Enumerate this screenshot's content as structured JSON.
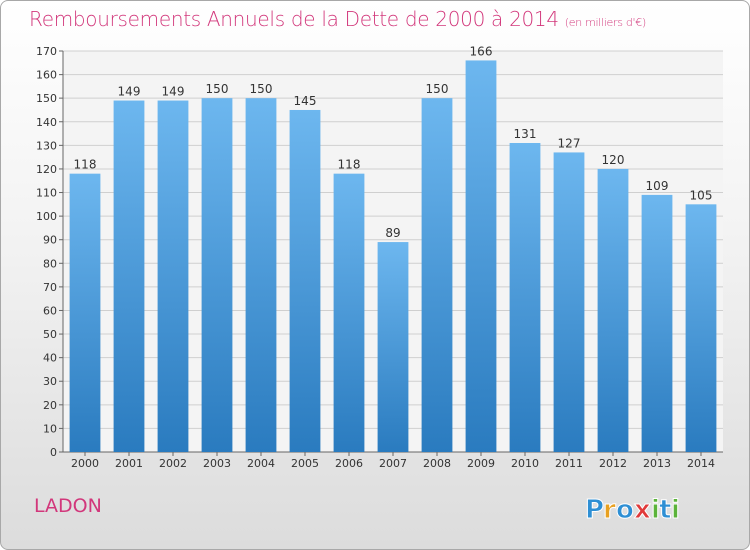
{
  "title": "Remboursements Annuels de la Dette de 2000 à 2014",
  "unit_note": "(en milliers d'€)",
  "commune": "LADON",
  "logo": {
    "text": "Proxiti",
    "letters": [
      "P",
      "r",
      "o",
      "x",
      "i",
      "t",
      "i"
    ],
    "colors": [
      "#2e8fd4",
      "#e8a020",
      "#2e8fd4",
      "#e03a3a",
      "#5bb33a",
      "#2e8fd4",
      "#5bb33a"
    ]
  },
  "colors": {
    "title": "#d2377b",
    "bar_light": "#6db7ef",
    "bar_dark": "#2a7bbf"
  },
  "chart_data": {
    "type": "bar",
    "categories": [
      "2000",
      "2001",
      "2002",
      "2003",
      "2004",
      "2005",
      "2006",
      "2007",
      "2008",
      "2009",
      "2010",
      "2011",
      "2012",
      "2013",
      "2014"
    ],
    "values": [
      118,
      149,
      149,
      150,
      150,
      145,
      118,
      89,
      150,
      166,
      131,
      127,
      120,
      109,
      105
    ],
    "title": "Remboursements Annuels de la Dette de 2000 à 2014",
    "xlabel": "",
    "ylabel": "",
    "ylim": [
      0,
      170
    ],
    "yticks": [
      0,
      10,
      20,
      30,
      40,
      50,
      60,
      70,
      80,
      90,
      100,
      110,
      120,
      130,
      140,
      150,
      160,
      170
    ],
    "grid": true,
    "data_labels": true
  }
}
